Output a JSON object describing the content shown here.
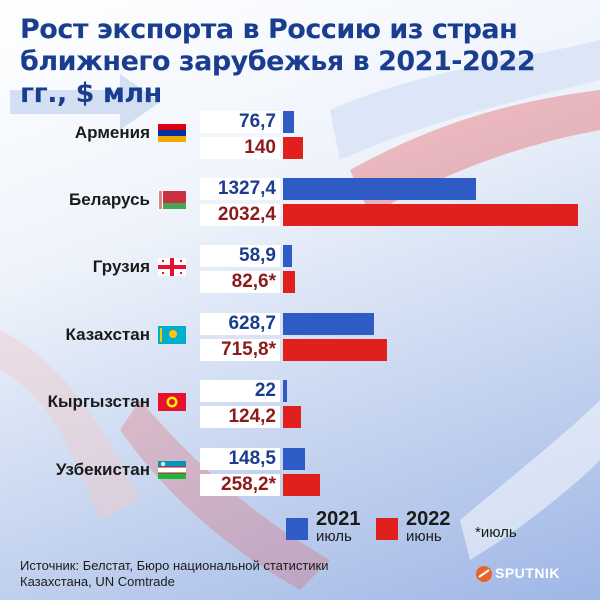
{
  "title": "Рост экспорта в Россию из стран ближнего зарубежья в 2021-2022 гг., $ млн",
  "chart_data": {
    "type": "bar",
    "categories": [
      "Армения",
      "Беларусь",
      "Грузия",
      "Казахстан",
      "Кыргызстан",
      "Узбекистан"
    ],
    "series": [
      {
        "name": "2021",
        "values": [
          76.7,
          1327.4,
          58.9,
          628.7,
          22,
          148.5
        ]
      },
      {
        "name": "2022",
        "values": [
          140,
          2032.4,
          82.6,
          715.8,
          124.2,
          258.2
        ]
      }
    ],
    "labels_2021": [
      "76,7",
      "1327,4",
      "58,9",
      "628,7",
      "22",
      "148,5"
    ],
    "labels_2022": [
      "140",
      "2032,4",
      "82,6*",
      "715,8*",
      "124,2",
      "258,2*"
    ],
    "flags": [
      "armenia-flag",
      "belarus-flag",
      "georgia-flag",
      "kazakhstan-flag",
      "kyrgyzstan-flag",
      "uzbekistan-flag"
    ],
    "colors": {
      "y2021": "#2f5cc4",
      "y2022": "#e0201d"
    },
    "legend": [
      {
        "year": "2021",
        "sub": "июль"
      },
      {
        "year": "2022",
        "sub": "июнь"
      }
    ],
    "legend_placement": "bottom-right"
  },
  "note": "*июль",
  "source": "Источник: Белстат, Бюро национальной статистики Казахстана, UN Comtrade",
  "logo": "SPUTNIK"
}
